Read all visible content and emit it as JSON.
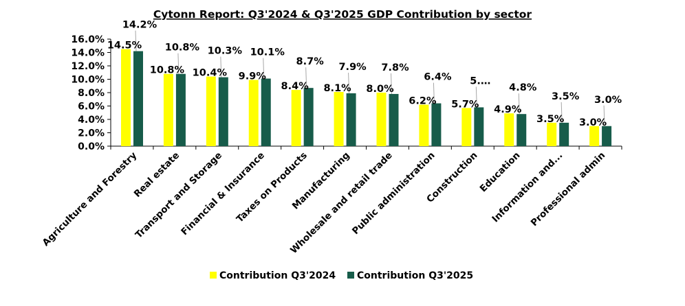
{
  "chart_data": {
    "type": "bar",
    "title": "Cytonn Report: Q3'2024 & Q3'2025 GDP Contribution by sector",
    "xlabel": "",
    "ylabel": "",
    "ylim": [
      0,
      16
    ],
    "y_ticks": [
      "0.0%",
      "2.0%",
      "4.0%",
      "6.0%",
      "8.0%",
      "10.0%",
      "12.0%",
      "14.0%",
      "16.0%"
    ],
    "grid": false,
    "legend_position": "bottom",
    "categories": [
      "Agriculture and Forestry",
      "Real estate",
      "Transport and Storage",
      "Financial & Insurance",
      "Taxes on Products",
      "Manufacturing",
      "Wholesale and retail trade",
      "Public administration",
      "Construction",
      "Education",
      "Information and...",
      "Professional admin"
    ],
    "series": [
      {
        "name": "Contribution Q3'2024",
        "color": "#FFFF00",
        "values": [
          14.5,
          10.8,
          10.4,
          9.9,
          8.4,
          8.1,
          8.0,
          6.2,
          5.7,
          4.9,
          3.5,
          3.0
        ],
        "labels": [
          "14.5%",
          "10.8%",
          "10.4%",
          "9.9%",
          "8.4%",
          "8.1%",
          "8.0%",
          "6.2%",
          "5.7%",
          "4.9%",
          "3.5%",
          "3.0%"
        ]
      },
      {
        "name": "Contribution Q3'2025",
        "color": "#175C4A",
        "values": [
          14.2,
          10.8,
          10.3,
          10.1,
          8.7,
          7.9,
          7.8,
          6.4,
          5.8,
          4.8,
          3.5,
          3.0
        ],
        "labels": [
          "14.2%",
          "10.8%",
          "10.3%",
          "10.1%",
          "8.7%",
          "7.9%",
          "7.8%",
          "6.4%",
          "5.…",
          "4.8%",
          "3.5%",
          "3.0%"
        ]
      }
    ]
  }
}
